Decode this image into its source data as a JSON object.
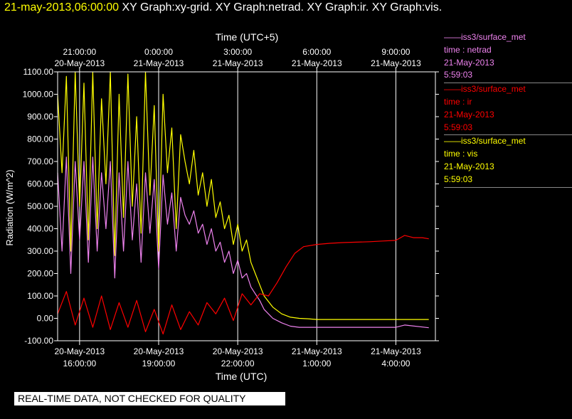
{
  "header": {
    "date": "21-may-2013,06:00:00",
    "graphs": "XY Graph:xy-grid.  XY Graph:netrad.  XY Graph:ir.  XY Graph:vis."
  },
  "notice": "REAL-TIME DATA, NOT CHECKED FOR QUALITY",
  "legend": [
    {
      "line1": "iss3/surface_met",
      "line2": "time : netrad",
      "line3": "21-May-2013",
      "line4": "5:59:03",
      "color": "#ee82ee"
    },
    {
      "line1": "iss3/surface_met",
      "line2": "time : ir",
      "line3": "21-May-2013",
      "line4": "5:59:03",
      "color": "#ff0000"
    },
    {
      "line1": "iss3/surface_met",
      "line2": "time : vis",
      "line3": "21-May-2013",
      "line4": "5:59:03",
      "color": "#ffff00"
    }
  ],
  "chart_data": {
    "type": "line",
    "xlabel": "Time (UTC)",
    "x2label": "Time (UTC+5)",
    "ylabel": "Radiation (W/m^2)",
    "xlim": [
      "20-May-2013 15:10",
      "21-May-2013 05:30"
    ],
    "ylim": [
      -100,
      1100
    ],
    "yticks": [
      -100,
      0,
      100,
      200,
      300,
      400,
      500,
      600,
      700,
      800,
      900,
      1000,
      1100
    ],
    "ytick_labels": [
      "-100.00",
      "0.00",
      "100.00",
      "200.00",
      "300.00",
      "400.00",
      "500.00",
      "600.00",
      "700.00",
      "800.00",
      "900.00",
      "1000.00",
      "1100.00"
    ],
    "xticks_bottom": [
      {
        "t": "20-May-2013 16:00",
        "l1": "20-May-2013",
        "l2": "16:00:00"
      },
      {
        "t": "20-May-2013 19:00",
        "l1": "20-May-2013",
        "l2": "19:00:00"
      },
      {
        "t": "20-May-2013 22:00",
        "l1": "20-May-2013",
        "l2": "22:00:00"
      },
      {
        "t": "21-May-2013 01:00",
        "l1": "21-May-2013",
        "l2": "1:00:00"
      },
      {
        "t": "21-May-2013 04:00",
        "l1": "21-May-2013",
        "l2": "4:00:00"
      }
    ],
    "xticks_top": [
      {
        "t": "20-May-2013 16:00",
        "l1": "21:00:00",
        "l2": "20-May-2013"
      },
      {
        "t": "20-May-2013 19:00",
        "l1": "0:00:00",
        "l2": "21-May-2013"
      },
      {
        "t": "20-May-2013 22:00",
        "l1": "3:00:00",
        "l2": "21-May-2013"
      },
      {
        "t": "21-May-2013 01:00",
        "l1": "6:00:00",
        "l2": "21-May-2013"
      },
      {
        "t": "21-May-2013 04:00",
        "l1": "9:00:00",
        "l2": "21-May-2013"
      }
    ],
    "grid": true,
    "legend_position": "right",
    "series": [
      {
        "key": "vis",
        "color": "#ffff00",
        "x": [
          "20-May-2013 15:10",
          "20-May-2013 15:20",
          "20-May-2013 15:30",
          "20-May-2013 15:40",
          "20-May-2013 15:50",
          "20-May-2013 16:00",
          "20-May-2013 16:10",
          "20-May-2013 16:20",
          "20-May-2013 16:30",
          "20-May-2013 16:40",
          "20-May-2013 16:50",
          "20-May-2013 17:00",
          "20-May-2013 17:10",
          "20-May-2013 17:20",
          "20-May-2013 17:30",
          "20-May-2013 17:40",
          "20-May-2013 17:50",
          "20-May-2013 18:00",
          "20-May-2013 18:10",
          "20-May-2013 18:20",
          "20-May-2013 18:30",
          "20-May-2013 18:40",
          "20-May-2013 18:50",
          "20-May-2013 19:00",
          "20-May-2013 19:10",
          "20-May-2013 19:20",
          "20-May-2013 19:30",
          "20-May-2013 19:40",
          "20-May-2013 19:50",
          "20-May-2013 20:00",
          "20-May-2013 20:10",
          "20-May-2013 20:20",
          "20-May-2013 20:30",
          "20-May-2013 20:40",
          "20-May-2013 20:50",
          "20-May-2013 21:00",
          "20-May-2013 21:10",
          "20-May-2013 21:20",
          "20-May-2013 21:30",
          "20-May-2013 21:40",
          "20-May-2013 21:50",
          "20-May-2013 22:00",
          "20-May-2013 22:10",
          "20-May-2013 22:20",
          "20-May-2013 22:30",
          "20-May-2013 22:40",
          "20-May-2013 22:50",
          "20-May-2013 23:00",
          "20-May-2013 23:20",
          "20-May-2013 23:40",
          "21-May-2013 00:00",
          "21-May-2013 00:20",
          "21-May-2013 00:40",
          "21-May-2013 01:00",
          "21-May-2013 02:00",
          "21-May-2013 03:00",
          "21-May-2013 04:00",
          "21-May-2013 05:00",
          "21-May-2013 05:15"
        ],
        "y": [
          1000,
          650,
          1080,
          300,
          1100,
          500,
          1050,
          350,
          1100,
          400,
          980,
          600,
          1100,
          280,
          1000,
          450,
          1090,
          500,
          900,
          380,
          1100,
          550,
          950,
          300,
          1000,
          650,
          850,
          400,
          820,
          700,
          600,
          750,
          550,
          650,
          500,
          620,
          450,
          520,
          400,
          460,
          330,
          420,
          300,
          350,
          250,
          200,
          150,
          100,
          50,
          20,
          5,
          0,
          -2,
          -5,
          -5,
          -5,
          -5,
          -5,
          -5
        ]
      },
      {
        "key": "netrad",
        "color": "#ee82ee",
        "x": [
          "20-May-2013 15:10",
          "20-May-2013 15:20",
          "20-May-2013 15:30",
          "20-May-2013 15:40",
          "20-May-2013 15:50",
          "20-May-2013 16:00",
          "20-May-2013 16:10",
          "20-May-2013 16:20",
          "20-May-2013 16:30",
          "20-May-2013 16:40",
          "20-May-2013 16:50",
          "20-May-2013 17:00",
          "20-May-2013 17:10",
          "20-May-2013 17:20",
          "20-May-2013 17:30",
          "20-May-2013 17:40",
          "20-May-2013 17:50",
          "20-May-2013 18:00",
          "20-May-2013 18:10",
          "20-May-2013 18:20",
          "20-May-2013 18:30",
          "20-May-2013 18:40",
          "20-May-2013 18:50",
          "20-May-2013 19:00",
          "20-May-2013 19:10",
          "20-May-2013 19:20",
          "20-May-2013 19:30",
          "20-May-2013 19:40",
          "20-May-2013 19:50",
          "20-May-2013 20:00",
          "20-May-2013 20:10",
          "20-May-2013 20:20",
          "20-May-2013 20:30",
          "20-May-2013 20:40",
          "20-May-2013 20:50",
          "20-May-2013 21:00",
          "20-May-2013 21:10",
          "20-May-2013 21:20",
          "20-May-2013 21:30",
          "20-May-2013 21:40",
          "20-May-2013 21:50",
          "20-May-2013 22:00",
          "20-May-2013 22:10",
          "20-May-2013 22:20",
          "20-May-2013 22:30",
          "20-May-2013 22:40",
          "20-May-2013 22:50",
          "20-May-2013 23:00",
          "20-May-2013 23:20",
          "20-May-2013 23:40",
          "21-May-2013 00:00",
          "21-May-2013 00:20",
          "21-May-2013 00:40",
          "21-May-2013 01:00",
          "21-May-2013 02:00",
          "21-May-2013 03:00",
          "21-May-2013 04:00",
          "21-May-2013 04:20",
          "21-May-2013 05:15"
        ],
        "y": [
          650,
          300,
          720,
          200,
          700,
          350,
          700,
          250,
          720,
          300,
          650,
          400,
          700,
          180,
          650,
          300,
          700,
          350,
          600,
          250,
          650,
          380,
          620,
          220,
          640,
          420,
          560,
          300,
          540,
          460,
          420,
          480,
          380,
          420,
          330,
          400,
          300,
          340,
          250,
          300,
          200,
          260,
          180,
          200,
          140,
          110,
          80,
          40,
          0,
          -20,
          -35,
          -40,
          -40,
          -40,
          -40,
          -40,
          -40,
          -30,
          -42
        ]
      },
      {
        "key": "ir",
        "color": "#ff0000",
        "x": [
          "20-May-2013 15:10",
          "20-May-2013 15:30",
          "20-May-2013 15:50",
          "20-May-2013 16:10",
          "20-May-2013 16:30",
          "20-May-2013 16:50",
          "20-May-2013 17:10",
          "20-May-2013 17:30",
          "20-May-2013 17:50",
          "20-May-2013 18:10",
          "20-May-2013 18:30",
          "20-May-2013 18:50",
          "20-May-2013 19:10",
          "20-May-2013 19:30",
          "20-May-2013 19:50",
          "20-May-2013 20:10",
          "20-May-2013 20:30",
          "20-May-2013 20:50",
          "20-May-2013 21:10",
          "20-May-2013 21:30",
          "20-May-2013 21:50",
          "20-May-2013 22:10",
          "20-May-2013 22:30",
          "20-May-2013 22:50",
          "20-May-2013 23:10",
          "20-May-2013 23:30",
          "20-May-2013 23:50",
          "21-May-2013 00:10",
          "21-May-2013 00:30",
          "21-May-2013 01:00",
          "21-May-2013 01:30",
          "21-May-2013 02:00",
          "21-May-2013 02:30",
          "21-May-2013 03:00",
          "21-May-2013 03:30",
          "21-May-2013 04:00",
          "21-May-2013 04:20",
          "21-May-2013 04:40",
          "21-May-2013 05:00",
          "21-May-2013 05:15"
        ],
        "y": [
          20,
          120,
          -30,
          90,
          -40,
          100,
          -50,
          70,
          -40,
          80,
          -60,
          40,
          -70,
          60,
          -50,
          30,
          -30,
          70,
          20,
          90,
          -10,
          110,
          60,
          110,
          100,
          160,
          230,
          290,
          320,
          330,
          335,
          338,
          340,
          342,
          345,
          348,
          370,
          360,
          360,
          355
        ]
      }
    ]
  }
}
